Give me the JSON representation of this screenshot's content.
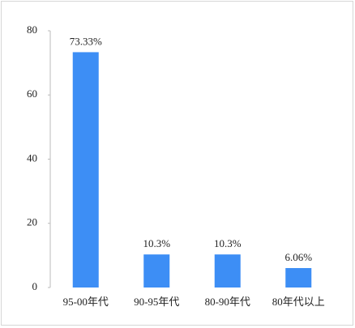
{
  "chart_data": {
    "type": "bar",
    "categories": [
      "95-00年代",
      "90-95年代",
      "80-90年代",
      "80年代以上"
    ],
    "values": [
      73.33,
      10.3,
      10.3,
      6.06
    ],
    "value_labels": [
      "73.33%",
      "10.3%",
      "10.3%",
      "6.06%"
    ],
    "color": "#3d8ef5",
    "ylim": [
      0,
      80
    ],
    "yticks": [
      0,
      20,
      40,
      60,
      80
    ],
    "grid": false
  }
}
